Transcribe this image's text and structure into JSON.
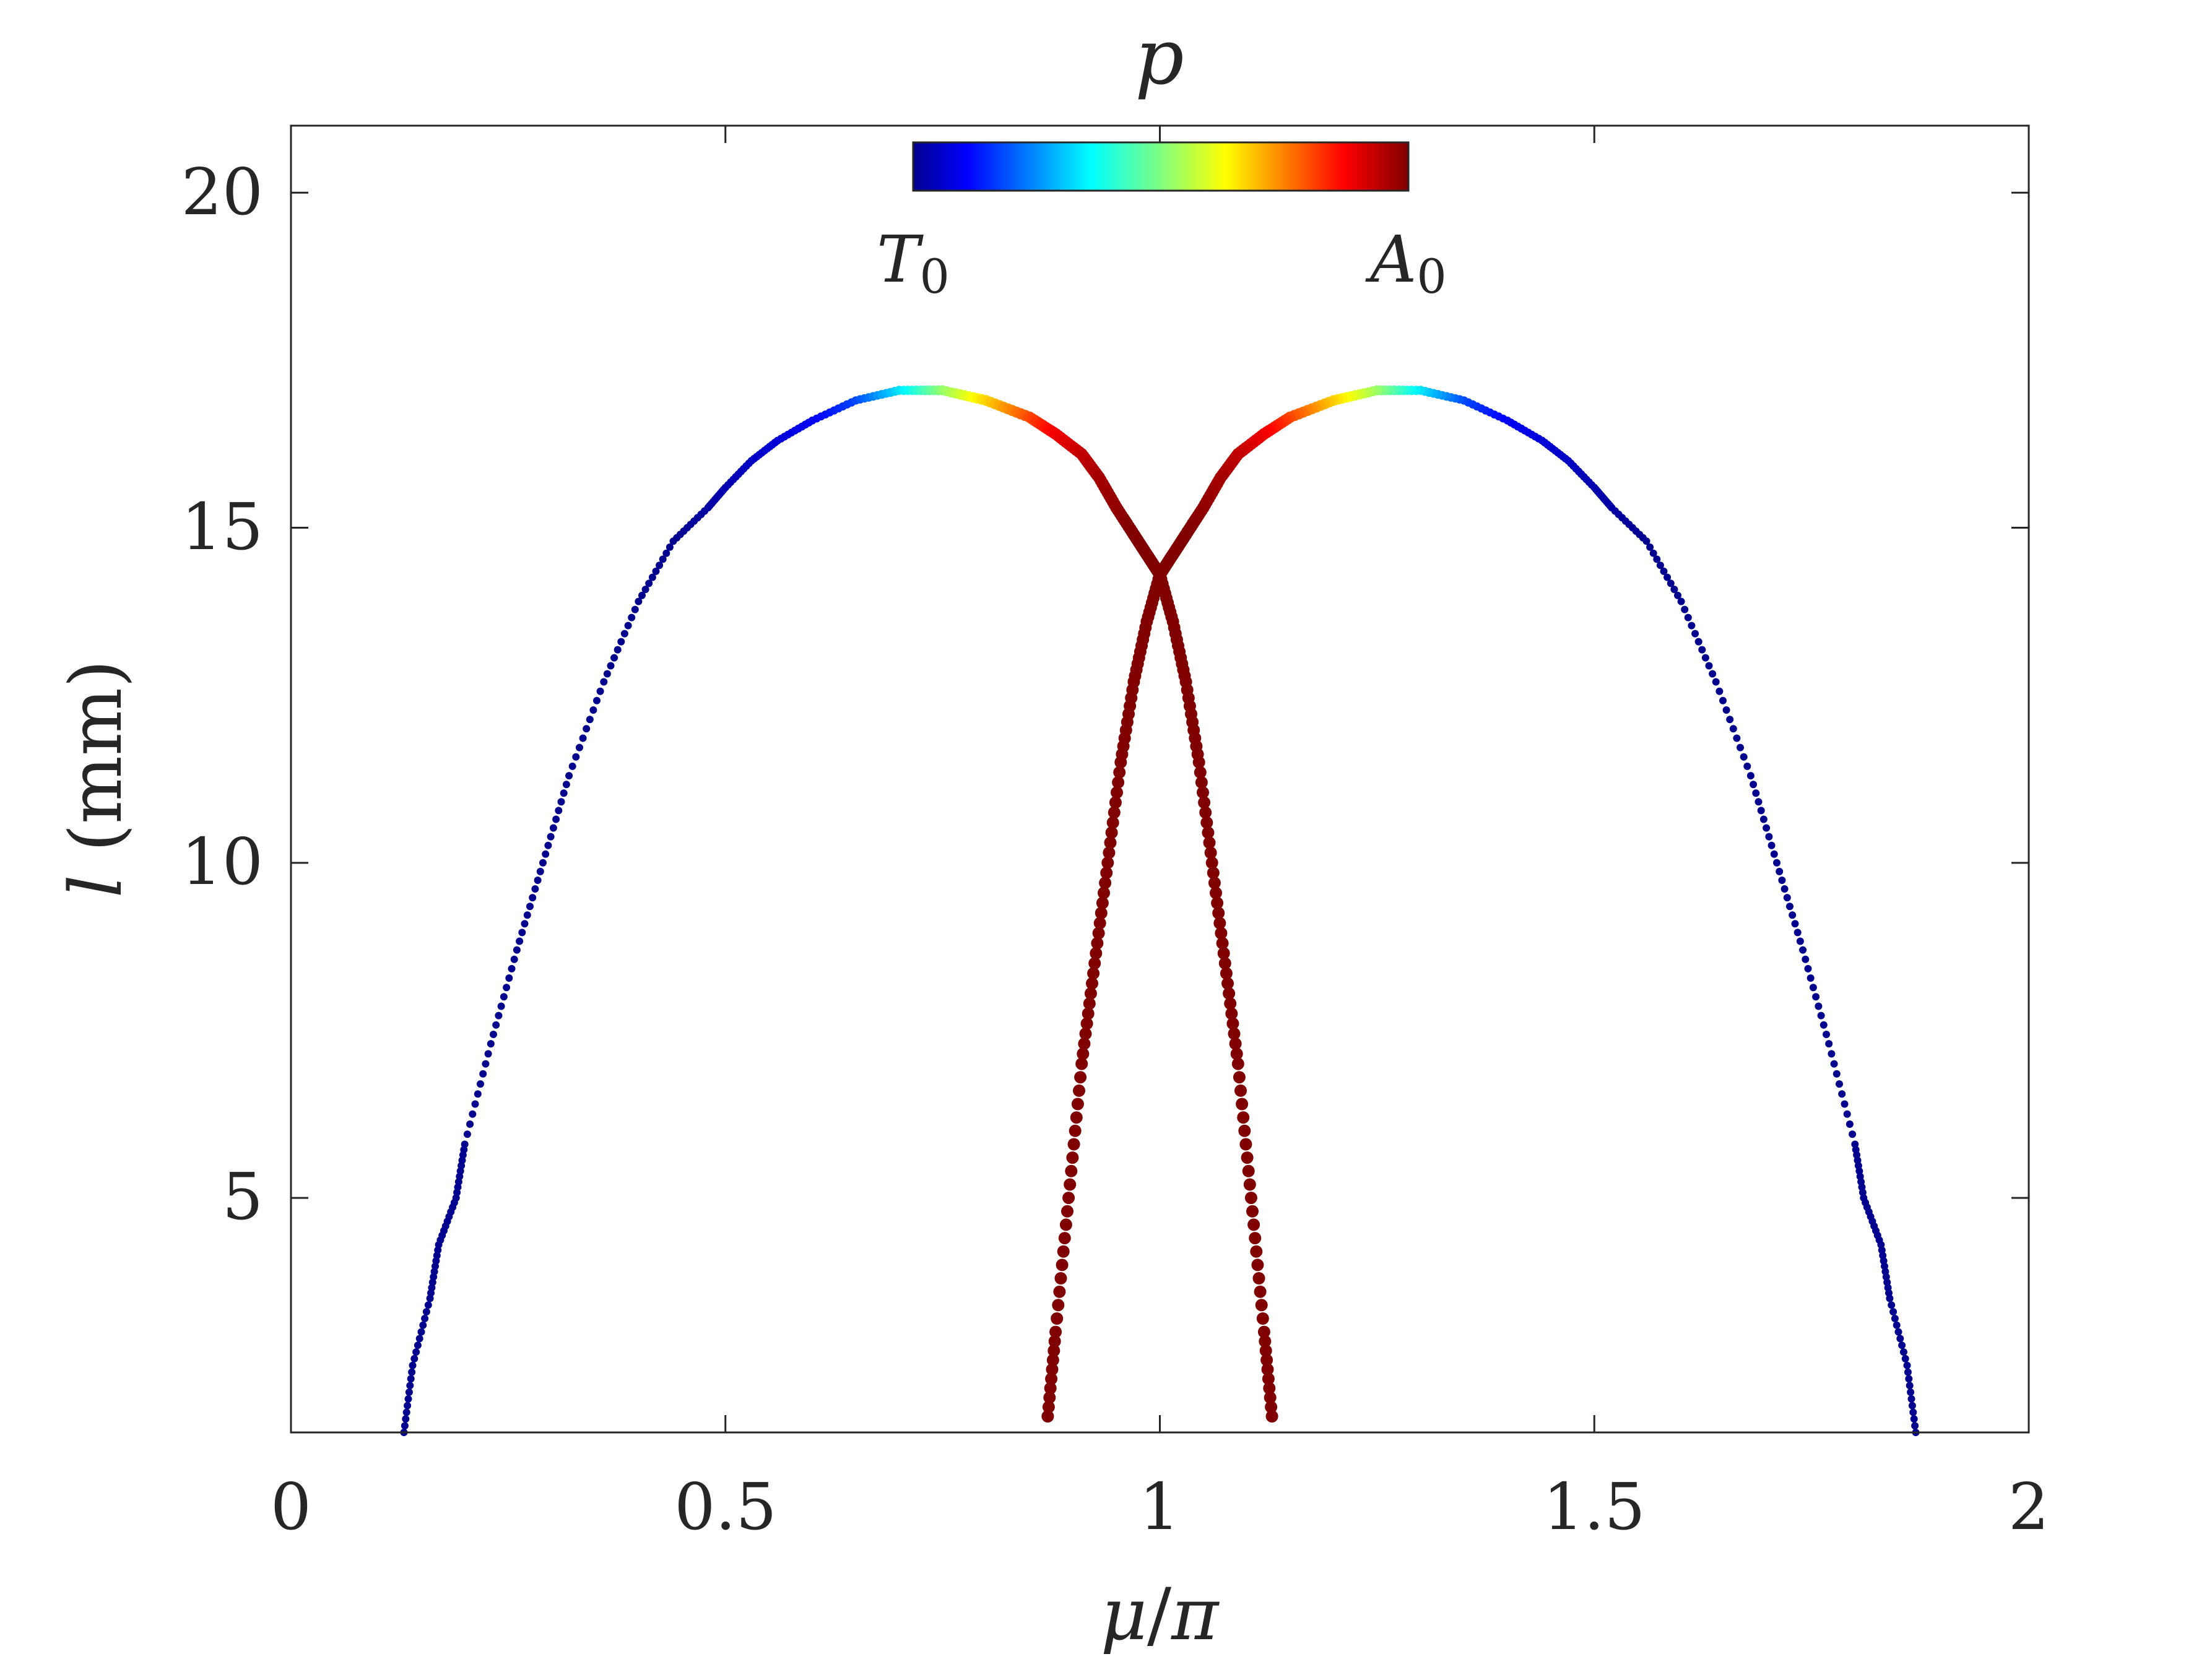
{
  "chart_data": {
    "type": "scatter",
    "title": "",
    "xlabel": {
      "var": "μ",
      "sep": "/",
      "den": "π"
    },
    "ylabel": {
      "var": "l",
      "unit": " (mm)"
    },
    "xlim": [
      0,
      2
    ],
    "ylim": [
      1.5,
      21
    ],
    "xticks": [
      0,
      0.5,
      1,
      1.5,
      2
    ],
    "xtick_labels": [
      "0",
      "0.5",
      "1",
      "1.5",
      "2"
    ],
    "yticks": [
      5,
      10,
      15,
      20
    ],
    "ytick_labels": [
      "5",
      "10",
      "15",
      "20"
    ],
    "grid": false,
    "box": true,
    "colorbar": {
      "label": "p",
      "placement": "top-center, inside axes",
      "colormap": "jet",
      "low_label": {
        "base": "T",
        "sub": "0"
      },
      "high_label": {
        "base": "A",
        "sub": "0"
      },
      "range": [
        0,
        1
      ]
    },
    "series": [
      {
        "branch": "left (symmetric about μ/π = 1 with right)",
        "points_x": [
          0.13,
          0.14,
          0.16,
          0.17,
          0.19,
          0.2,
          0.23,
          0.26,
          0.29,
          0.32,
          0.36,
          0.4,
          0.44,
          0.48,
          0.5,
          0.53,
          0.56,
          0.6,
          0.65,
          0.7,
          0.75,
          0.8,
          0.85,
          0.88,
          0.91,
          0.93,
          0.95,
          0.97,
          0.985,
          1.0,
          1.015,
          1.03,
          1.045,
          1.06,
          1.075,
          1.09,
          1.105,
          1.12,
          1.13
        ],
        "points_y": [
          1.5,
          2.5,
          3.5,
          4.3,
          5,
          5.8,
          7.3,
          8.7,
          10,
          11.3,
          12.7,
          13.9,
          14.8,
          15.3,
          15.6,
          16,
          16.3,
          16.6,
          16.9,
          17.05,
          17.05,
          16.9,
          16.65,
          16.4,
          16.1,
          15.75,
          15.3,
          14.9,
          14.6,
          14.3,
          13.6,
          12.7,
          11.5,
          10,
          8.5,
          7,
          5,
          3,
          1.6
        ],
        "p": [
          0,
          0,
          0,
          0,
          0,
          0,
          0,
          0,
          0,
          0,
          0,
          0,
          0,
          0.02,
          0.03,
          0.05,
          0.07,
          0.1,
          0.18,
          0.33,
          0.52,
          0.67,
          0.8,
          0.88,
          0.93,
          0.96,
          0.98,
          1,
          1,
          1,
          1,
          1,
          1,
          1,
          1,
          1,
          1,
          1,
          1
        ]
      },
      {
        "branch": "right (mirror of left: x → 2 − x)",
        "points_x": [
          1.87,
          1.86,
          1.84,
          1.83,
          1.81,
          1.8,
          1.77,
          1.74,
          1.71,
          1.68,
          1.64,
          1.6,
          1.56,
          1.52,
          1.5,
          1.47,
          1.44,
          1.4,
          1.35,
          1.3,
          1.25,
          1.2,
          1.15,
          1.12,
          1.09,
          1.07,
          1.05,
          1.03,
          1.015,
          1.0,
          0.985,
          0.97,
          0.955,
          0.94,
          0.925,
          0.91,
          0.895,
          0.88,
          0.87
        ],
        "points_y": [
          1.5,
          2.5,
          3.5,
          4.3,
          5,
          5.8,
          7.3,
          8.7,
          10,
          11.3,
          12.7,
          13.9,
          14.8,
          15.3,
          15.6,
          16,
          16.3,
          16.6,
          16.9,
          17.05,
          17.05,
          16.9,
          16.65,
          16.4,
          16.1,
          15.75,
          15.3,
          14.9,
          14.6,
          14.3,
          13.6,
          12.7,
          11.5,
          10,
          8.5,
          7,
          5,
          3,
          1.6
        ],
        "p": [
          0,
          0,
          0,
          0,
          0,
          0,
          0,
          0,
          0,
          0,
          0,
          0,
          0,
          0.02,
          0.03,
          0.05,
          0.07,
          0.1,
          0.18,
          0.33,
          0.52,
          0.67,
          0.8,
          0.88,
          0.93,
          0.96,
          0.98,
          1,
          1,
          1,
          1,
          1,
          1,
          1,
          1,
          1,
          1,
          1,
          1
        ]
      }
    ]
  }
}
